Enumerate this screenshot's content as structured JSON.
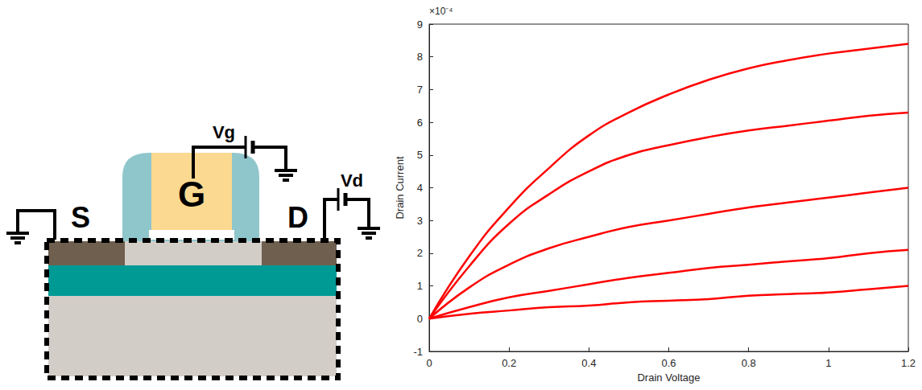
{
  "chart_data": {
    "type": "line",
    "x_label": "Drain Voltage",
    "y_label": "Drain Current",
    "annotations": [
      "×10⁻⁴"
    ],
    "x": [
      0,
      0.1,
      0.2,
      0.3,
      0.4,
      0.5,
      0.6,
      0.7,
      0.8,
      0.9,
      1.0,
      1.1,
      1.2
    ],
    "series": [
      {
        "color": "#ff0000",
        "values": [
          0,
          1.9,
          3.4,
          4.6,
          5.6,
          6.3,
          6.85,
          7.3,
          7.65,
          7.9,
          8.1,
          8.25,
          8.4
        ]
      },
      {
        "color": "#ff0000",
        "values": [
          0,
          1.6,
          2.9,
          3.8,
          4.5,
          5.0,
          5.3,
          5.55,
          5.75,
          5.9,
          6.05,
          6.2,
          6.3
        ]
      },
      {
        "color": "#ff0000",
        "values": [
          0,
          0.95,
          1.65,
          2.15,
          2.5,
          2.8,
          3.0,
          3.2,
          3.4,
          3.55,
          3.7,
          3.85,
          4.0
        ]
      },
      {
        "color": "#ff0000",
        "values": [
          0,
          0.35,
          0.65,
          0.85,
          1.05,
          1.25,
          1.4,
          1.55,
          1.65,
          1.75,
          1.85,
          2.0,
          2.1
        ]
      },
      {
        "color": "#ff0000",
        "values": [
          0,
          0.15,
          0.25,
          0.35,
          0.4,
          0.5,
          0.55,
          0.6,
          0.7,
          0.75,
          0.8,
          0.9,
          1.0
        ]
      }
    ],
    "xlim": [
      0,
      1.2
    ],
    "xticks": [
      0,
      0.2,
      0.4,
      0.6,
      0.8,
      1,
      1.2
    ],
    "ylim": [
      -1,
      9
    ],
    "yticks": [
      -1,
      0,
      1,
      2,
      3,
      4,
      5,
      6,
      7,
      8,
      9
    ],
    "grid": false
  },
  "diagram": {
    "source": "S",
    "gate": "G",
    "drain": "D",
    "gate_voltage": "Vg",
    "drain_voltage": "Vd"
  }
}
